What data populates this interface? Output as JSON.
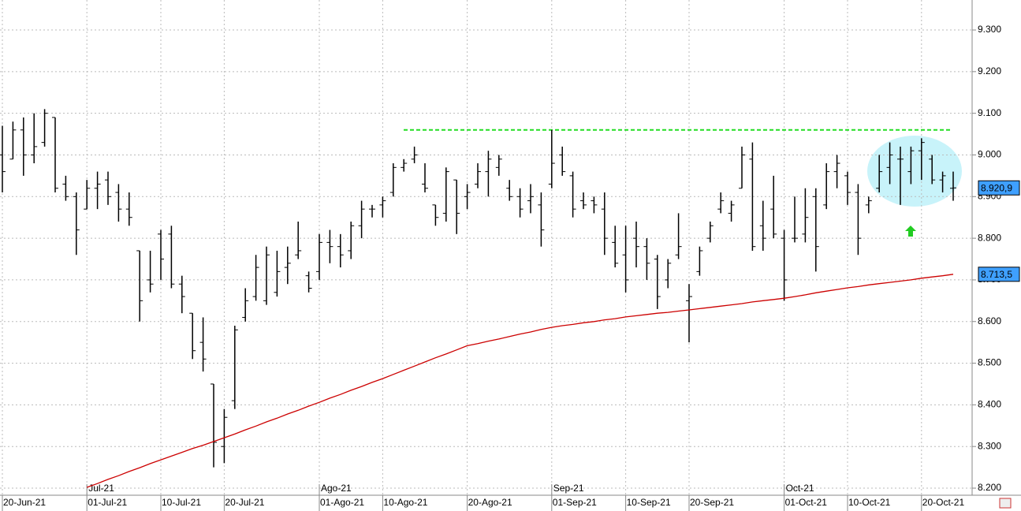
{
  "chart_data": {
    "type": "ohlc",
    "categories": [
      "20-Jun-21",
      null,
      null,
      null,
      null,
      null,
      null,
      null,
      "01-Jul-21",
      null,
      null,
      null,
      null,
      null,
      null,
      "10-Jul-21",
      null,
      null,
      null,
      null,
      null,
      "20-Jul-21",
      null,
      null,
      null,
      null,
      null,
      null,
      null,
      null,
      "01-Ago-21",
      null,
      null,
      null,
      null,
      null,
      "10-Ago-21",
      null,
      null,
      null,
      null,
      null,
      null,
      null,
      "20-Ago-21",
      null,
      null,
      null,
      null,
      null,
      null,
      null,
      "01-Sep-21",
      null,
      null,
      null,
      null,
      null,
      null,
      "10-Sep-21",
      null,
      null,
      null,
      null,
      null,
      "20-Sep-21",
      null,
      null,
      null,
      null,
      null,
      null,
      null,
      null,
      "01-Oct-21",
      null,
      null,
      null,
      null,
      null,
      "10-Oct-21",
      null,
      null,
      null,
      null,
      null,
      null,
      "20-Oct-21",
      null,
      null,
      null
    ],
    "month_categories": [
      null,
      null,
      null,
      null,
      null,
      null,
      null,
      null,
      "Jul-21",
      null,
      null,
      null,
      null,
      null,
      null,
      null,
      null,
      null,
      null,
      null,
      null,
      null,
      null,
      null,
      null,
      null,
      null,
      null,
      null,
      null,
      "Ago-21",
      null,
      null,
      null,
      null,
      null,
      null,
      null,
      null,
      null,
      null,
      null,
      null,
      null,
      null,
      null,
      null,
      null,
      null,
      null,
      null,
      null,
      "Sep-21",
      null,
      null,
      null,
      null,
      null,
      null,
      null,
      null,
      null,
      null,
      null,
      null,
      null,
      null,
      null,
      null,
      null,
      null,
      null,
      null,
      null,
      "Oct-21",
      null,
      null,
      null,
      null,
      null,
      null,
      null,
      null,
      null,
      null,
      null,
      null,
      null,
      null,
      null,
      null
    ],
    "open": [
      9000,
      8990,
      9060,
      9000,
      9030,
      9090,
      8930,
      8900,
      8870,
      8920,
      8940,
      8910,
      8870,
      8770,
      8700,
      8810,
      8810,
      8690,
      8620,
      8550,
      8450,
      8300,
      8410,
      8610,
      8660,
      8650,
      8670,
      8730,
      8760,
      8710,
      8720,
      8790,
      8780,
      8770,
      8830,
      8870,
      8880,
      8910,
      8970,
      8990,
      8930,
      8880,
      8860,
      8940,
      8900,
      8930,
      8960,
      8970,
      8920,
      8900,
      8890,
      8880,
      8930,
      9000,
      8950,
      8890,
      8890,
      8870,
      8790,
      8760,
      8800,
      8780,
      8750,
      8700,
      8760,
      8650,
      8720,
      8800,
      8870,
      8860,
      8920,
      8990,
      8830,
      8870,
      8800,
      8800,
      8810,
      8900,
      8880,
      8960,
      8950,
      8910,
      8880,
      8920,
      8970,
      8990,
      8960,
      9010,
      8990,
      8940,
      8920
    ],
    "high": [
      9070,
      9080,
      9090,
      9100,
      9110,
      9090,
      8950,
      8910,
      8940,
      8960,
      8960,
      8930,
      8910,
      8770,
      8770,
      8820,
      8830,
      8710,
      8620,
      8610,
      8450,
      8390,
      8590,
      8680,
      8760,
      8780,
      8770,
      8780,
      8840,
      8720,
      8810,
      8820,
      8810,
      8840,
      8890,
      8880,
      8900,
      8980,
      8990,
      9020,
      8980,
      8880,
      8970,
      8940,
      8930,
      8980,
      9010,
      9000,
      8940,
      8920,
      8930,
      8910,
      9060,
      9020,
      8960,
      8910,
      8900,
      8910,
      8830,
      8830,
      8840,
      8800,
      8760,
      8750,
      8860,
      8690,
      8780,
      8840,
      8910,
      8890,
      9020,
      9030,
      8890,
      8950,
      8820,
      8900,
      8920,
      8920,
      8980,
      9000,
      8960,
      8930,
      8900,
      9000,
      9030,
      9020,
      9020,
      9040,
      9000,
      8960,
      8960
    ],
    "low": [
      8910,
      8990,
      8950,
      8980,
      9020,
      8910,
      8890,
      8760,
      8870,
      8870,
      8880,
      8840,
      8830,
      8600,
      8670,
      8700,
      8680,
      8620,
      8510,
      8480,
      8250,
      8260,
      8390,
      8600,
      8650,
      8640,
      8660,
      8690,
      8750,
      8670,
      8700,
      8740,
      8730,
      8750,
      8800,
      8850,
      8850,
      8900,
      8960,
      8980,
      8910,
      8830,
      8840,
      8810,
      8870,
      8920,
      8900,
      8950,
      8890,
      8850,
      8860,
      8780,
      8920,
      8950,
      8850,
      8870,
      8860,
      8760,
      8730,
      8670,
      8730,
      8700,
      8630,
      8680,
      8750,
      8550,
      8710,
      8790,
      8860,
      8840,
      8920,
      8770,
      8770,
      8800,
      8650,
      8790,
      8790,
      8720,
      8870,
      8920,
      8880,
      8760,
      8860,
      8910,
      8930,
      8880,
      8930,
      8940,
      8930,
      8910,
      8890
    ],
    "close": [
      8960,
      9060,
      9000,
      9020,
      9100,
      8920,
      8900,
      8820,
      8920,
      8930,
      8900,
      8870,
      8850,
      8650,
      8690,
      8750,
      8690,
      8660,
      8530,
      8510,
      8310,
      8370,
      8580,
      8650,
      8730,
      8760,
      8720,
      8740,
      8770,
      8680,
      8790,
      8780,
      8760,
      8830,
      8870,
      8870,
      8890,
      8970,
      8980,
      9000,
      8920,
      8850,
      8960,
      8860,
      8910,
      8960,
      8990,
      8990,
      8900,
      8870,
      8900,
      8820,
      8980,
      8960,
      8870,
      8880,
      8880,
      8800,
      8740,
      8700,
      8780,
      8740,
      8660,
      8740,
      8780,
      8660,
      8770,
      8830,
      8890,
      8880,
      9000,
      8780,
      8800,
      8810,
      8700,
      8800,
      8850,
      8780,
      8960,
      8980,
      8910,
      8800,
      8890,
      8960,
      9000,
      8990,
      9010,
      9030,
      8940,
      8950,
      8920.9
    ],
    "color": "#000000",
    "moving_average": {
      "color": "#cc0000",
      "values": [
        null,
        null,
        null,
        null,
        null,
        null,
        null,
        null,
        8202,
        8211,
        8221,
        8230,
        8240,
        8249,
        8259,
        8268,
        8277,
        8286,
        8295,
        8303,
        8312,
        8321,
        8330,
        8340,
        8349,
        8359,
        8368,
        8378,
        8387,
        8397,
        8406,
        8416,
        8425,
        8435,
        8444,
        8454,
        8463,
        8473,
        8483,
        8493,
        8503,
        8513,
        8522,
        8532,
        8542,
        8547,
        8553,
        8558,
        8564,
        8570,
        8575,
        8581,
        8586,
        8590,
        8593,
        8597,
        8600,
        8604,
        8607,
        8611,
        8614,
        8617,
        8620,
        8622,
        8625,
        8628,
        8631,
        8634,
        8637,
        8640,
        8643,
        8647,
        8650,
        8653,
        8656,
        8660,
        8664,
        8669,
        8673,
        8677,
        8681,
        8684,
        8688,
        8691,
        8694,
        8697,
        8700,
        8704,
        8707,
        8710,
        8713.5
      ]
    },
    "hlines": [
      {
        "value": 9060,
        "color": "#22dd22"
      }
    ],
    "last_close_label": "8.920,9",
    "ma_last_label": "8.713,5",
    "ylim": [
      8183,
      9372
    ],
    "yticks": [
      {
        "value": 8200,
        "label": "8.200"
      },
      {
        "value": 8300,
        "label": "8.300"
      },
      {
        "value": 8400,
        "label": "8.400"
      },
      {
        "value": 8500,
        "label": "8.500"
      },
      {
        "value": 8600,
        "label": "8.600"
      },
      {
        "value": 8700,
        "label": "8.700"
      },
      {
        "value": 8800,
        "label": "8.800"
      },
      {
        "value": 8900,
        "label": "8.900"
      },
      {
        "value": 9000,
        "label": "9.000"
      },
      {
        "value": 9100,
        "label": "9.100"
      },
      {
        "value": 9200,
        "label": "9.200"
      },
      {
        "value": 9300,
        "label": "9.300"
      }
    ],
    "grid": true
  }
}
